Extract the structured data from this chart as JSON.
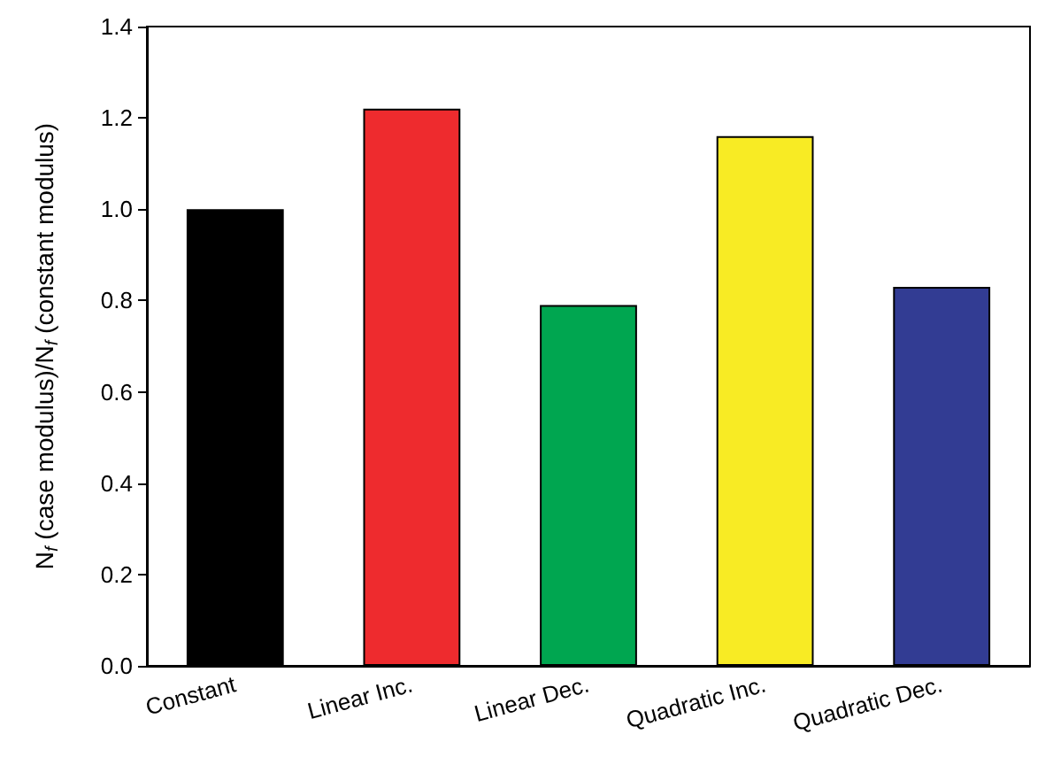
{
  "chart_data": {
    "type": "bar",
    "ylabel": "N$_{f}$ (case modulus)/N$_{f}$ (constant modulus)",
    "categories": [
      "Constant",
      "Linear Inc.",
      "Linear Dec.",
      "Quadratic Inc.",
      "Quadratic Dec."
    ],
    "values": [
      1.0,
      1.22,
      0.79,
      1.16,
      0.83
    ],
    "colors": [
      "#000000",
      "#ee2b2e",
      "#00a650",
      "#f8eb24",
      "#323c93"
    ],
    "ylim": [
      0,
      1.4
    ],
    "yticks": [
      {
        "value": 0,
        "label": "0.0"
      },
      {
        "value": 0.2,
        "label": "0.2"
      },
      {
        "value": 0.4,
        "label": "0.4"
      },
      {
        "value": 0.6,
        "label": "0.6"
      },
      {
        "value": 0.8,
        "label": "0.8"
      },
      {
        "value": 1.0,
        "label": "1.0"
      },
      {
        "value": 1.2,
        "label": "1.2"
      },
      {
        "value": 1.4,
        "label": "1.4"
      }
    ],
    "grid": false
  }
}
